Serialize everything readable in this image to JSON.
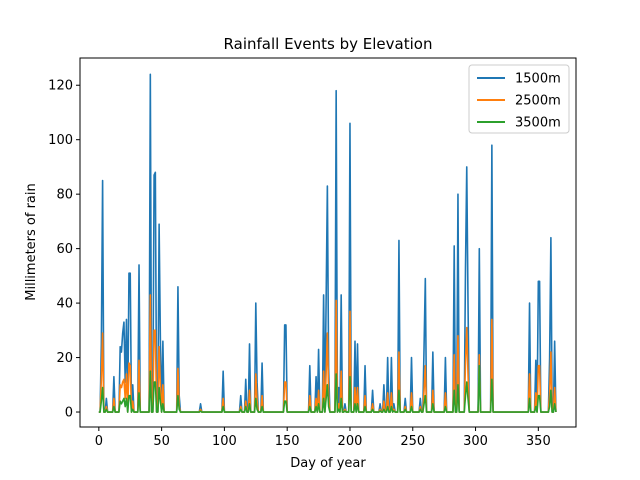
{
  "chart_data": {
    "type": "line",
    "title": "Rainfall Events by Elevation",
    "xlabel": "Day of year",
    "ylabel": "Millimeters of rain",
    "xlim": [
      -15,
      380
    ],
    "ylim": [
      -5.5,
      130
    ],
    "xticks": [
      0,
      50,
      100,
      150,
      200,
      250,
      300,
      350
    ],
    "yticks": [
      0,
      20,
      40,
      60,
      80,
      100,
      120
    ],
    "legend_position": "top-right",
    "grid": false,
    "series": [
      {
        "name": "1500m",
        "color": "#1f77b4",
        "events": [
          [
            2,
            25
          ],
          [
            3,
            85
          ],
          [
            6,
            5
          ],
          [
            12,
            13
          ],
          [
            17,
            24
          ],
          [
            18,
            22
          ],
          [
            19,
            29
          ],
          [
            20,
            33
          ],
          [
            21,
            11
          ],
          [
            22,
            34
          ],
          [
            24,
            51
          ],
          [
            25,
            51
          ],
          [
            27,
            10
          ],
          [
            32,
            54
          ],
          [
            41,
            124
          ],
          [
            44,
            87
          ],
          [
            45,
            88
          ],
          [
            48,
            69
          ],
          [
            49,
            27
          ],
          [
            51,
            26
          ],
          [
            63,
            46
          ],
          [
            64,
            6
          ],
          [
            81,
            3
          ],
          [
            99,
            15
          ],
          [
            113,
            6
          ],
          [
            117,
            12
          ],
          [
            120,
            25
          ],
          [
            125,
            40
          ],
          [
            126,
            11
          ],
          [
            130,
            18
          ],
          [
            148,
            32
          ],
          [
            149,
            32
          ],
          [
            168,
            17
          ],
          [
            173,
            13
          ],
          [
            175,
            23
          ],
          [
            179,
            43
          ],
          [
            181,
            41
          ],
          [
            182,
            83
          ],
          [
            183,
            16
          ],
          [
            189,
            118
          ],
          [
            191,
            9
          ],
          [
            193,
            43
          ],
          [
            196,
            3
          ],
          [
            200,
            106
          ],
          [
            204,
            26
          ],
          [
            206,
            25
          ],
          [
            212,
            17
          ],
          [
            218,
            8
          ],
          [
            224,
            3
          ],
          [
            227,
            10
          ],
          [
            230,
            20
          ],
          [
            233,
            20
          ],
          [
            235,
            3
          ],
          [
            239,
            63
          ],
          [
            244,
            5
          ],
          [
            249,
            20
          ],
          [
            256,
            5
          ],
          [
            259,
            24
          ],
          [
            260,
            49
          ],
          [
            266,
            22
          ],
          [
            276,
            20
          ],
          [
            283,
            61
          ],
          [
            286,
            80
          ],
          [
            292,
            53
          ],
          [
            293,
            90
          ],
          [
            294,
            40
          ],
          [
            303,
            60
          ],
          [
            313,
            98
          ],
          [
            343,
            40
          ],
          [
            348,
            19
          ],
          [
            350,
            48
          ],
          [
            351,
            48
          ],
          [
            359,
            20
          ],
          [
            360,
            64
          ],
          [
            363,
            26
          ]
        ]
      },
      {
        "name": "2500m",
        "color": "#ff7f0e",
        "events": [
          [
            2,
            12
          ],
          [
            3,
            29
          ],
          [
            6,
            2
          ],
          [
            12,
            5
          ],
          [
            17,
            10
          ],
          [
            18,
            9
          ],
          [
            19,
            11
          ],
          [
            20,
            12
          ],
          [
            21,
            5
          ],
          [
            22,
            14
          ],
          [
            24,
            18
          ],
          [
            25,
            17
          ],
          [
            27,
            4
          ],
          [
            32,
            19
          ],
          [
            41,
            43
          ],
          [
            44,
            30
          ],
          [
            45,
            30
          ],
          [
            48,
            24
          ],
          [
            49,
            10
          ],
          [
            51,
            10
          ],
          [
            63,
            16
          ],
          [
            64,
            2
          ],
          [
            81,
            1
          ],
          [
            99,
            5
          ],
          [
            113,
            2
          ],
          [
            117,
            4
          ],
          [
            120,
            8
          ],
          [
            125,
            14
          ],
          [
            126,
            4
          ],
          [
            130,
            6
          ],
          [
            148,
            11
          ],
          [
            149,
            11
          ],
          [
            168,
            6
          ],
          [
            173,
            5
          ],
          [
            175,
            8
          ],
          [
            179,
            15
          ],
          [
            181,
            14
          ],
          [
            182,
            29
          ],
          [
            183,
            6
          ],
          [
            189,
            41
          ],
          [
            191,
            3
          ],
          [
            193,
            15
          ],
          [
            196,
            1
          ],
          [
            200,
            37
          ],
          [
            204,
            9
          ],
          [
            206,
            9
          ],
          [
            212,
            6
          ],
          [
            218,
            3
          ],
          [
            224,
            1
          ],
          [
            227,
            4
          ],
          [
            230,
            7
          ],
          [
            233,
            7
          ],
          [
            235,
            1
          ],
          [
            239,
            22
          ],
          [
            244,
            2
          ],
          [
            249,
            7
          ],
          [
            256,
            2
          ],
          [
            259,
            8
          ],
          [
            260,
            17
          ],
          [
            266,
            8
          ],
          [
            276,
            7
          ],
          [
            283,
            21
          ],
          [
            286,
            28
          ],
          [
            292,
            18
          ],
          [
            293,
            31
          ],
          [
            294,
            14
          ],
          [
            303,
            21
          ],
          [
            313,
            34
          ],
          [
            343,
            14
          ],
          [
            348,
            7
          ],
          [
            350,
            17
          ],
          [
            351,
            17
          ],
          [
            359,
            7
          ],
          [
            360,
            22
          ],
          [
            363,
            9
          ]
        ]
      },
      {
        "name": "3500m",
        "color": "#2ca02c",
        "events": [
          [
            2,
            4
          ],
          [
            3,
            9
          ],
          [
            6,
            1
          ],
          [
            12,
            2
          ],
          [
            17,
            4
          ],
          [
            18,
            3
          ],
          [
            19,
            4
          ],
          [
            20,
            5
          ],
          [
            21,
            2
          ],
          [
            22,
            5
          ],
          [
            24,
            6
          ],
          [
            25,
            6
          ],
          [
            27,
            1
          ],
          [
            32,
            7
          ],
          [
            41,
            15
          ],
          [
            44,
            11
          ],
          [
            45,
            11
          ],
          [
            48,
            9
          ],
          [
            49,
            4
          ],
          [
            51,
            3
          ],
          [
            63,
            6
          ],
          [
            64,
            1
          ],
          [
            81,
            0.3
          ],
          [
            99,
            2
          ],
          [
            113,
            1
          ],
          [
            117,
            2
          ],
          [
            120,
            3
          ],
          [
            125,
            5
          ],
          [
            126,
            1
          ],
          [
            130,
            2
          ],
          [
            148,
            4
          ],
          [
            149,
            4
          ],
          [
            168,
            2
          ],
          [
            173,
            2
          ],
          [
            175,
            3
          ],
          [
            179,
            5
          ],
          [
            181,
            5
          ],
          [
            182,
            10
          ],
          [
            183,
            2
          ],
          [
            189,
            14
          ],
          [
            191,
            1
          ],
          [
            193,
            5
          ],
          [
            196,
            0.4
          ],
          [
            200,
            13
          ],
          [
            204,
            3
          ],
          [
            206,
            3
          ],
          [
            212,
            2
          ],
          [
            218,
            1
          ],
          [
            224,
            0.4
          ],
          [
            227,
            1
          ],
          [
            230,
            2
          ],
          [
            233,
            2
          ],
          [
            235,
            0.4
          ],
          [
            239,
            8
          ],
          [
            244,
            1
          ],
          [
            249,
            2
          ],
          [
            256,
            1
          ],
          [
            259,
            3
          ],
          [
            260,
            6
          ],
          [
            266,
            3
          ],
          [
            276,
            2
          ],
          [
            283,
            8
          ],
          [
            286,
            10
          ],
          [
            292,
            6
          ],
          [
            293,
            11
          ],
          [
            294,
            5
          ],
          [
            303,
            17
          ],
          [
            313,
            12
          ],
          [
            343,
            5
          ],
          [
            348,
            2
          ],
          [
            350,
            6
          ],
          [
            351,
            6
          ],
          [
            359,
            2
          ],
          [
            360,
            8
          ],
          [
            363,
            3
          ]
        ]
      }
    ]
  }
}
